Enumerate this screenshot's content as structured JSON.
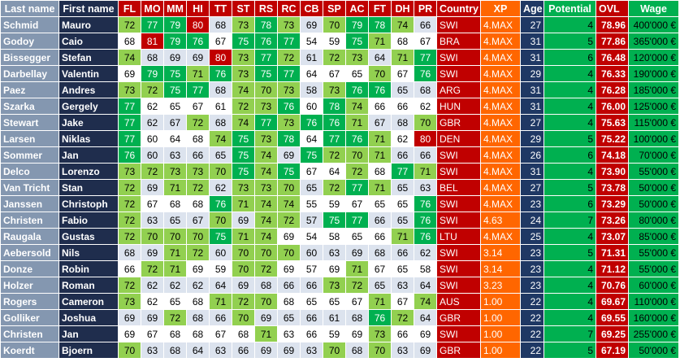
{
  "table": {
    "header": [
      "Last name",
      "First name",
      "FL",
      "MO",
      "MM",
      "HI",
      "TT",
      "ST",
      "RS",
      "RC",
      "CB",
      "SP",
      "AC",
      "FT",
      "DH",
      "PR",
      "Country",
      "XP",
      "Age",
      "Potential",
      "OVL",
      "Wage"
    ],
    "rows": [
      [
        "Schmid",
        "Mauro",
        72,
        77,
        79,
        80,
        68,
        73,
        78,
        73,
        69,
        70,
        79,
        78,
        74,
        66,
        "SWI",
        "4.MAX",
        27,
        4,
        "78.96",
        "400'000 €"
      ],
      [
        "Godoy",
        "Caio",
        68,
        81,
        79,
        76,
        67,
        75,
        76,
        77,
        54,
        59,
        75,
        71,
        68,
        67,
        "BRA",
        "4.MAX",
        31,
        5,
        "77.86",
        "365'000 €"
      ],
      [
        "Bissegger",
        "Stefan",
        74,
        68,
        69,
        69,
        80,
        73,
        77,
        72,
        61,
        72,
        73,
        64,
        71,
        77,
        "SWI",
        "4.MAX",
        31,
        6,
        "76.48",
        "120'000 €"
      ],
      [
        "Darbellay",
        "Valentin",
        69,
        79,
        75,
        71,
        76,
        73,
        75,
        77,
        64,
        67,
        65,
        70,
        67,
        76,
        "SWI",
        "4.MAX",
        29,
        4,
        "76.33",
        "190'000 €"
      ],
      [
        "Paez",
        "Andres",
        73,
        72,
        75,
        77,
        68,
        74,
        70,
        73,
        58,
        73,
        76,
        76,
        65,
        68,
        "ARG",
        "4.MAX",
        31,
        4,
        "76.28",
        "185'000 €"
      ],
      [
        "Szarka",
        "Gergely",
        77,
        62,
        65,
        67,
        61,
        72,
        73,
        76,
        60,
        78,
        74,
        66,
        66,
        62,
        "HUN",
        "4.MAX",
        31,
        4,
        "76.00",
        "125'000 €"
      ],
      [
        "Stewart",
        "Jake",
        77,
        62,
        67,
        72,
        68,
        74,
        77,
        73,
        76,
        76,
        71,
        67,
        68,
        70,
        "GBR",
        "4.MAX",
        27,
        4,
        "75.63",
        "115'000 €"
      ],
      [
        "Larsen",
        "Niklas",
        77,
        60,
        64,
        68,
        74,
        75,
        73,
        78,
        64,
        77,
        76,
        71,
        62,
        80,
        "DEN",
        "4.MAX",
        29,
        5,
        "75.22",
        "100'000 €"
      ],
      [
        "Sommer",
        "Jan",
        76,
        60,
        63,
        66,
        65,
        75,
        74,
        69,
        75,
        72,
        70,
        71,
        66,
        66,
        "SWI",
        "4.MAX",
        26,
        6,
        "74.18",
        "70'000 €"
      ],
      [
        "Delco",
        "Lorenzo",
        73,
        72,
        73,
        73,
        70,
        75,
        74,
        75,
        67,
        64,
        72,
        68,
        77,
        71,
        "SWI",
        "4.MAX",
        31,
        4,
        "73.90",
        "55'000 €"
      ],
      [
        "Van Tricht",
        "Stan",
        72,
        69,
        71,
        72,
        62,
        73,
        73,
        70,
        65,
        72,
        77,
        71,
        65,
        63,
        "BEL",
        "4.MAX",
        27,
        5,
        "73.78",
        "50'000 €"
      ],
      [
        "Janssen",
        "Christoph",
        72,
        67,
        68,
        68,
        76,
        71,
        74,
        74,
        55,
        59,
        67,
        65,
        65,
        76,
        "SWI",
        "4.MAX",
        23,
        6,
        "73.29",
        "50'000 €"
      ],
      [
        "Christen",
        "Fabio",
        72,
        63,
        65,
        67,
        70,
        69,
        74,
        72,
        57,
        75,
        77,
        66,
        65,
        76,
        "SWI",
        "4.63",
        24,
        7,
        "73.26",
        "80'000 €"
      ],
      [
        "Raugala",
        "Gustas",
        72,
        70,
        70,
        70,
        75,
        71,
        74,
        69,
        54,
        58,
        65,
        66,
        71,
        76,
        "LTU",
        "4.MAX",
        25,
        4,
        "73.07",
        "85'000 €"
      ],
      [
        "Aebersold",
        "Nils",
        68,
        69,
        71,
        72,
        60,
        70,
        70,
        70,
        60,
        63,
        69,
        68,
        66,
        62,
        "SWI",
        "3.14",
        23,
        5,
        "71.31",
        "55'000 €"
      ],
      [
        "Donze",
        "Robin",
        66,
        72,
        71,
        69,
        59,
        70,
        72,
        69,
        57,
        69,
        71,
        67,
        65,
        58,
        "SWI",
        "3.14",
        23,
        4,
        "71.12",
        "55'000 €"
      ],
      [
        "Holzer",
        "Roman",
        72,
        62,
        62,
        62,
        64,
        69,
        68,
        66,
        66,
        73,
        72,
        65,
        63,
        64,
        "SWI",
        "3.23",
        23,
        4,
        "70.76",
        "60'000 €"
      ],
      [
        "Rogers",
        "Cameron",
        73,
        62,
        65,
        68,
        71,
        72,
        70,
        68,
        65,
        65,
        67,
        71,
        67,
        74,
        "AUS",
        "1.00",
        22,
        4,
        "69.67",
        "110'000 €"
      ],
      [
        "Golliker",
        "Joshua",
        69,
        69,
        72,
        68,
        66,
        70,
        69,
        65,
        66,
        61,
        68,
        76,
        72,
        64,
        "GBR",
        "1.00",
        22,
        4,
        "69.55",
        "160'000 €"
      ],
      [
        "Christen",
        "Jan",
        69,
        67,
        68,
        68,
        67,
        68,
        71,
        63,
        66,
        59,
        69,
        73,
        66,
        69,
        "SWI",
        "1.00",
        22,
        7,
        "69.25",
        "255'000 €"
      ],
      [
        "Koerdt",
        "Bjoern",
        70,
        63,
        68,
        64,
        63,
        66,
        69,
        69,
        63,
        70,
        68,
        70,
        63,
        69,
        "GBR",
        "1.00",
        22,
        5,
        "67.19",
        "50'000 €"
      ]
    ]
  }
}
